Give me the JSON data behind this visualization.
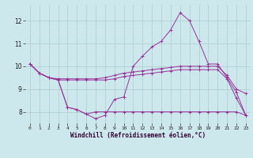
{
  "xlabel": "Windchill (Refroidissement éolien,°C)",
  "bg_color": "#cce8ec",
  "line_color": "#993399",
  "grid_color": "#aacccc",
  "xlim": [
    -0.5,
    23.5
  ],
  "ylim": [
    7.5,
    12.7
  ],
  "yticks": [
    8,
    9,
    10,
    11,
    12
  ],
  "xticks": [
    0,
    1,
    2,
    3,
    4,
    5,
    6,
    7,
    8,
    9,
    10,
    11,
    12,
    13,
    14,
    15,
    16,
    17,
    18,
    19,
    20,
    21,
    22,
    23
  ],
  "series": [
    [
      10.1,
      9.7,
      9.5,
      9.45,
      9.45,
      9.45,
      9.45,
      9.45,
      9.5,
      9.6,
      9.7,
      9.75,
      9.8,
      9.85,
      9.9,
      9.95,
      10.0,
      10.0,
      10.0,
      10.0,
      10.0,
      9.6,
      9.0,
      8.8
    ],
    [
      10.1,
      9.7,
      9.5,
      9.4,
      9.4,
      9.4,
      9.4,
      9.4,
      9.4,
      9.45,
      9.55,
      9.6,
      9.65,
      9.7,
      9.75,
      9.8,
      9.85,
      9.85,
      9.85,
      9.85,
      9.85,
      9.45,
      8.6,
      7.85
    ],
    [
      10.1,
      9.7,
      9.5,
      9.4,
      8.2,
      8.1,
      7.9,
      7.7,
      7.85,
      8.55,
      8.65,
      10.0,
      10.45,
      10.85,
      11.1,
      11.6,
      12.35,
      12.0,
      11.1,
      10.1,
      10.1,
      9.5,
      8.85,
      7.85
    ],
    [
      10.1,
      9.7,
      9.5,
      9.4,
      8.2,
      8.1,
      7.9,
      8.0,
      8.0,
      8.0,
      8.0,
      8.0,
      8.0,
      8.0,
      8.0,
      8.0,
      8.0,
      8.0,
      8.0,
      8.0,
      8.0,
      8.0,
      8.0,
      7.85
    ]
  ]
}
